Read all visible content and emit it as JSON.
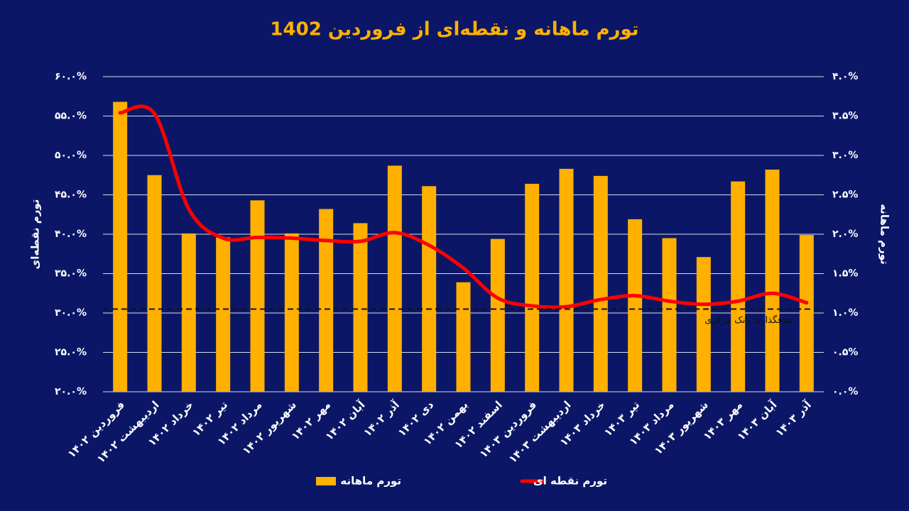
{
  "chart_data": {
    "type": "bar",
    "title": "تورم ماهانه و نقطه‌ای از فروردین 1402",
    "y_label": "تورم نقطه‌ای",
    "y2_label": "تورم ماهانه",
    "categories": [
      "فروردین ۱۴۰۲",
      "اردیبهشت ۱۴۰۲",
      "خرداد ۱۴۰۲",
      "تیر ۱۴۰۲",
      "مرداد ۱۴۰۲",
      "شهریور ۱۴۰۲",
      "مهر ۱۴۰۲",
      "آبان ۱۴۰۲",
      "آذر ۱۴۰۲",
      "دی ۱۴۰۲",
      "بهمن ۱۴۰۲",
      "اسفند ۱۴۰۲",
      "فروردین ۱۴۰۳",
      "اردیبهشت ۱۴۰۳",
      "خرداد ۱۴۰۳",
      "تیر ۱۴۰۳",
      "مرداد ۱۴۰۳",
      "شهریور ۱۴۰۳",
      "مهر ۱۴۰۳",
      "آبان ۱۴۰۳",
      "آذر ۱۴۰۳"
    ],
    "series": [
      {
        "name": "تورم ماهانه",
        "type": "bar",
        "axis": "y2",
        "color": "#ffb000",
        "values": [
          3.68,
          2.75,
          2.01,
          1.96,
          2.43,
          2.01,
          2.32,
          2.14,
          2.87,
          2.61,
          1.39,
          1.94,
          2.64,
          2.83,
          2.74,
          2.19,
          1.95,
          1.71,
          2.67,
          2.82,
          1.99
        ]
      },
      {
        "name": "تورم نقطه ای",
        "type": "line",
        "color": "#ff0000",
        "values": [
          55.4,
          55.3,
          43.2,
          39.5,
          39.6,
          39.5,
          39.2,
          39.1,
          40.2,
          38.6,
          35.7,
          31.9,
          30.9,
          30.8,
          31.7,
          32.2,
          31.5,
          31.1,
          31.5,
          32.5,
          31.3
        ]
      }
    ],
    "target": {
      "value": 30.5,
      "label": "هدفگذاری بانک مرکزی"
    },
    "ylim": [
      20,
      60
    ],
    "yticks": [
      {
        "value": 20,
        "label": "۲۰.۰%"
      },
      {
        "value": 25,
        "label": "۲۵.۰%"
      },
      {
        "value": 30,
        "label": "۳۰.۰%"
      },
      {
        "value": 35,
        "label": "۳۵.۰%"
      },
      {
        "value": 40,
        "label": "۴۰.۰%"
      },
      {
        "value": 45,
        "label": "۴۵.۰%"
      },
      {
        "value": 50,
        "label": "۵۰.۰%"
      },
      {
        "value": 55,
        "label": "۵۵.۰%"
      },
      {
        "value": 60,
        "label": "۶۰.۰%"
      }
    ],
    "y2lim": [
      0,
      4
    ],
    "y2ticks": [
      {
        "value": 0,
        "label": "۰.۰%"
      },
      {
        "value": 0.5,
        "label": "۰.۵%"
      },
      {
        "value": 1,
        "label": "۱.۰%"
      },
      {
        "value": 1.5,
        "label": "۱.۵%"
      },
      {
        "value": 2,
        "label": "۲.۰%"
      },
      {
        "value": 2.5,
        "label": "۲.۵%"
      },
      {
        "value": 3,
        "label": "۳.۰%"
      },
      {
        "value": 3.5,
        "label": "۳.۵%"
      },
      {
        "value": 4,
        "label": "۴.۰%"
      }
    ],
    "grid": true,
    "legend": "bottom"
  }
}
